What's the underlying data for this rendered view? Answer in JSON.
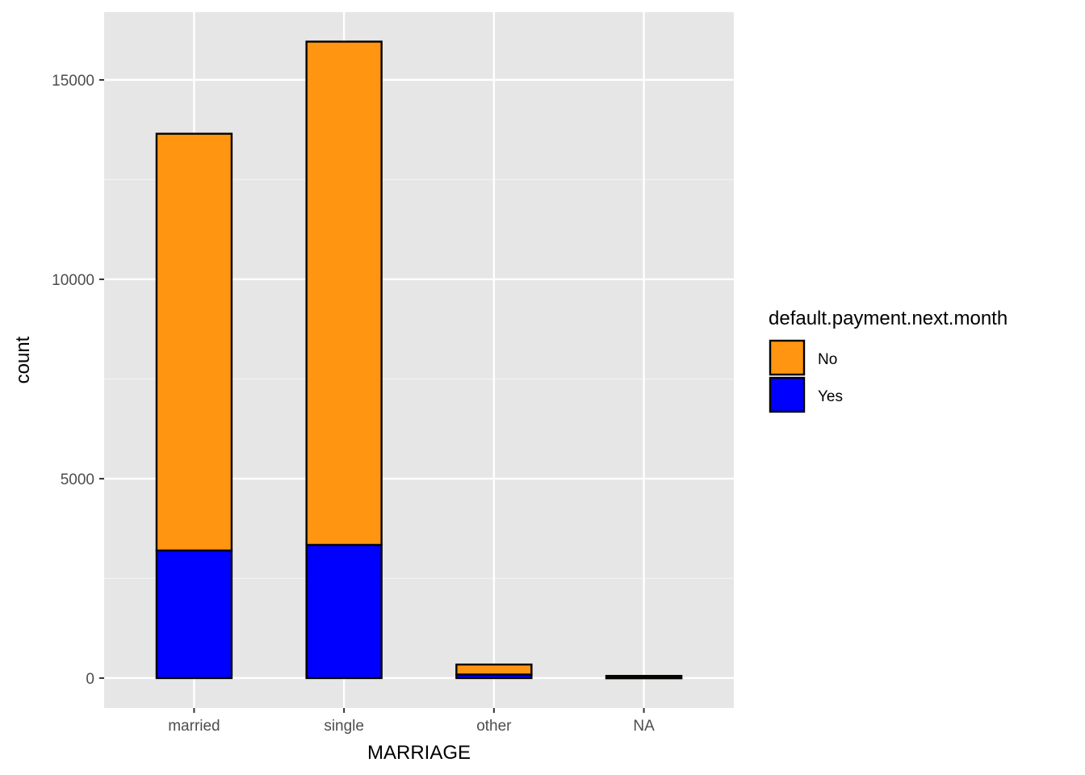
{
  "chart_data": {
    "type": "bar",
    "stacked": true,
    "xlabel": "MARRIAGE",
    "ylabel": "count",
    "categories": [
      "married",
      "single",
      "other",
      "NA"
    ],
    "series": [
      {
        "name": "No",
        "color": "#ff9510",
        "values": [
          10450,
          12620,
          250,
          50
        ]
      },
      {
        "name": "Yes",
        "color": "#0000ff",
        "values": [
          3200,
          3340,
          90,
          5
        ]
      }
    ],
    "ylim": [
      -750,
      16700
    ],
    "yticks": [
      0,
      5000,
      10000,
      15000
    ],
    "yticks_labels": [
      "0",
      "5000",
      "10000",
      "15000"
    ],
    "grid": true,
    "legend": {
      "title": "default.payment.next.month",
      "placement": "right",
      "entries": [
        "No",
        "Yes"
      ]
    }
  }
}
